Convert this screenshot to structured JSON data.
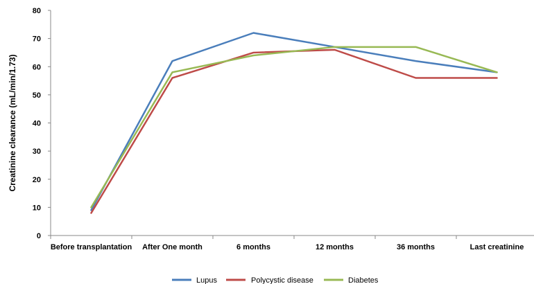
{
  "chart_data": {
    "type": "line",
    "title": "",
    "xlabel": "",
    "ylabel": "Creatinine clearance (mL/min/1.73)",
    "categories": [
      "Before transplantation",
      "After One month",
      "6 months",
      "12 months",
      "36 months",
      "Last creatinine"
    ],
    "ylim": [
      0,
      80
    ],
    "yticks": [
      0,
      10,
      20,
      30,
      40,
      50,
      60,
      70,
      80
    ],
    "grid": false,
    "legend_position": "bottom",
    "series": [
      {
        "name": "Lupus",
        "color": "#4a7ebb",
        "values": [
          9,
          62,
          72,
          67,
          62,
          58
        ]
      },
      {
        "name": "Polycystic disease",
        "color": "#be4b48",
        "values": [
          8,
          56,
          65,
          66,
          56,
          56
        ]
      },
      {
        "name": "Diabetes",
        "color": "#98b954",
        "values": [
          10,
          58,
          64,
          67,
          67,
          58
        ]
      }
    ]
  }
}
